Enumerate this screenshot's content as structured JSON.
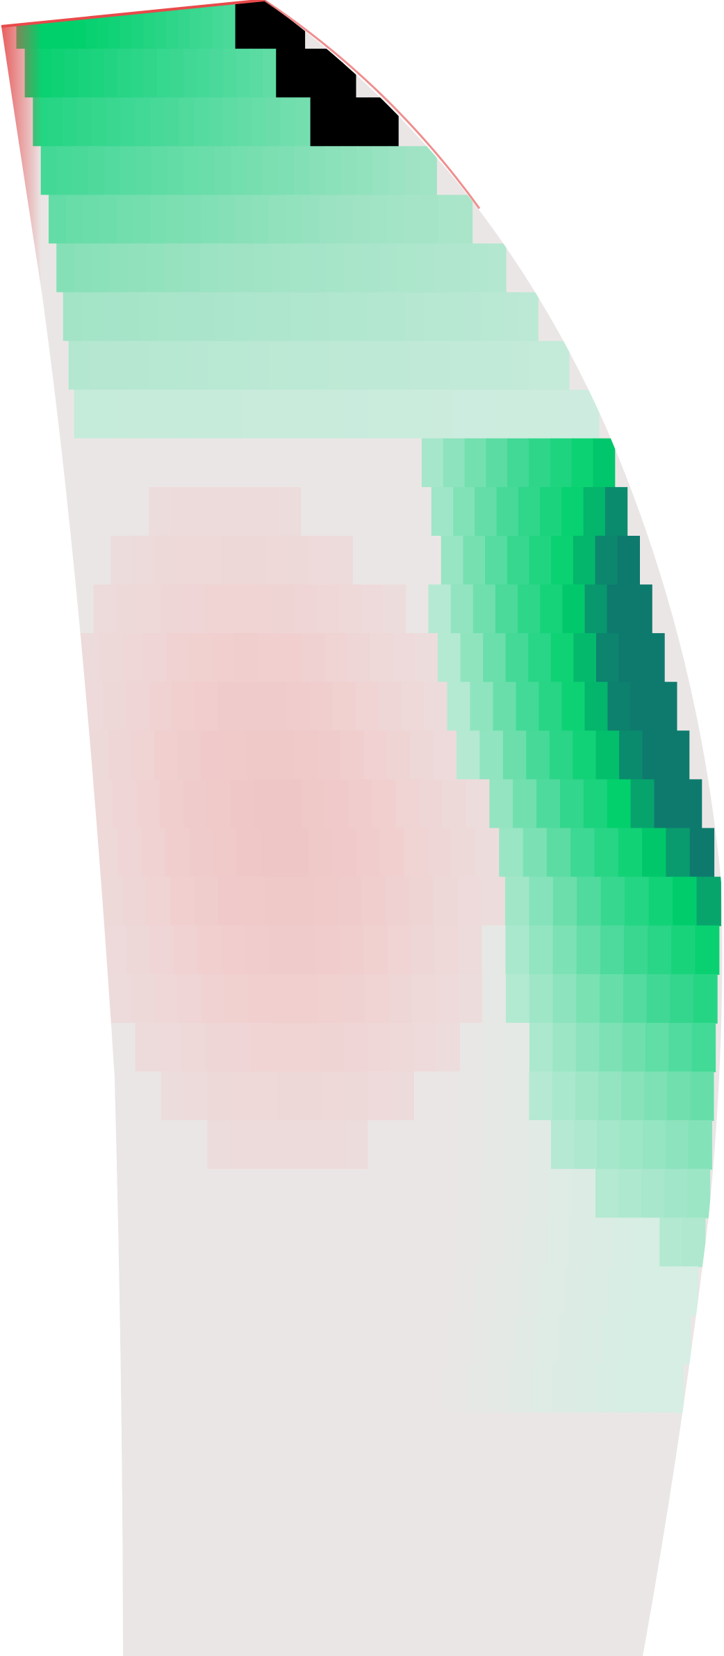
{
  "figure": {
    "kind": "pressure-distribution-on-blade",
    "colors": {
      "background": "#ffffff",
      "neutral": "#ebe6e6",
      "pink_light": "#eddcdc",
      "pink_mid": "#f1cfcf",
      "pink_strong": "#efc6c6",
      "red_edge": "#e84a4a",
      "green_pale": "#d6eee4",
      "green_light": "#9fe3c4",
      "green_mid": "#3fd894",
      "green_bright": "#00d06b",
      "green_deep": "#0a8a6c",
      "teal_dark": "#0e7a6e"
    }
  }
}
